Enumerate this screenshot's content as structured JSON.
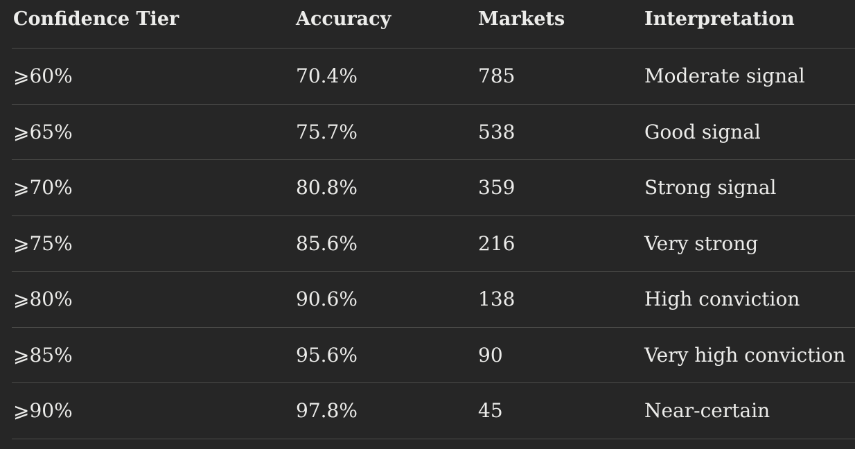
{
  "table": {
    "headers": [
      "Confidence Tier",
      "Accuracy",
      "Markets",
      "Interpretation"
    ],
    "rows": [
      [
        "⩾60%",
        "70.4%",
        "785",
        "Moderate signal"
      ],
      [
        "⩾65%",
        "75.7%",
        "538",
        "Good signal"
      ],
      [
        "⩾70%",
        "80.8%",
        "359",
        "Strong signal"
      ],
      [
        "⩾75%",
        "85.6%",
        "216",
        "Very strong"
      ],
      [
        "⩾80%",
        "90.6%",
        "138",
        "High conviction"
      ],
      [
        "⩾85%",
        "95.6%",
        "90",
        "Very high conviction"
      ],
      [
        "⩾90%",
        "97.8%",
        "45",
        "Near-certain"
      ]
    ]
  }
}
